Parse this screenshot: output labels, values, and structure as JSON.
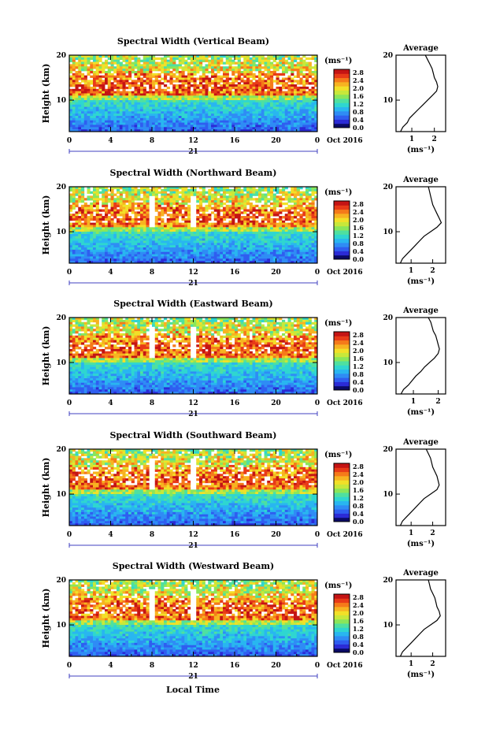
{
  "figure": {
    "xlabel": "Local Time",
    "date_label": "Oct 2016",
    "day_label": "21",
    "unit_label": "(ms⁻¹)",
    "avg_title": "Average",
    "avg_xlabel": "(ms⁻¹)"
  },
  "colorbar": {
    "ticks": [
      "2.8",
      "2.4",
      "2.0",
      "1.6",
      "1.2",
      "0.8",
      "0.4",
      "0.0"
    ],
    "colors": [
      "#0a0a66",
      "#2b2bd6",
      "#2f5ef0",
      "#2f8cf5",
      "#29b6f0",
      "#2fd6d0",
      "#4fe0a0",
      "#8ae65a",
      "#c8e83a",
      "#f2e028",
      "#f7b321",
      "#f57a1a",
      "#e83a18",
      "#c41414"
    ]
  },
  "chart_data": [
    {
      "type": "heatmap",
      "title": "Spectral Width (Vertical Beam)",
      "ylabel": "Height (km)",
      "xlim": [
        0,
        24
      ],
      "ylim": [
        3,
        20
      ],
      "x_ticks": [
        "0",
        "4",
        "8",
        "12",
        "16",
        "20",
        "0"
      ],
      "y_ticks": [
        "20",
        "10"
      ],
      "colorbar_range": [
        0.0,
        2.8
      ],
      "avg": {
        "xlim": [
          0.3,
          2.5
        ],
        "x_ticks": [
          "1",
          "2"
        ],
        "y_ticks": [
          "20",
          "10"
        ],
        "profile": [
          [
            0.5,
            3
          ],
          [
            0.6,
            4
          ],
          [
            0.8,
            5
          ],
          [
            0.9,
            6
          ],
          [
            1.1,
            7
          ],
          [
            1.3,
            8
          ],
          [
            1.5,
            9
          ],
          [
            1.7,
            10
          ],
          [
            1.9,
            11
          ],
          [
            2.1,
            12
          ],
          [
            2.15,
            13
          ],
          [
            2.1,
            14
          ],
          [
            2.0,
            15
          ],
          [
            1.95,
            16
          ],
          [
            1.9,
            17
          ],
          [
            1.8,
            18
          ],
          [
            1.7,
            19
          ],
          [
            1.6,
            20
          ]
        ]
      }
    },
    {
      "type": "heatmap",
      "title": "Spectral Width (Northward Beam)",
      "ylabel": "Height (km)",
      "xlim": [
        0,
        24
      ],
      "ylim": [
        3,
        20
      ],
      "x_ticks": [
        "0",
        "4",
        "8",
        "12",
        "16",
        "20",
        "0"
      ],
      "y_ticks": [
        "20",
        "10"
      ],
      "colorbar_range": [
        0.0,
        2.8
      ],
      "avg": {
        "xlim": [
          0.3,
          2.6
        ],
        "x_ticks": [
          "1",
          "2"
        ],
        "y_ticks": [
          "20",
          "10"
        ],
        "profile": [
          [
            0.5,
            3
          ],
          [
            0.6,
            4
          ],
          [
            0.8,
            5
          ],
          [
            1.0,
            6
          ],
          [
            1.2,
            7
          ],
          [
            1.4,
            8
          ],
          [
            1.6,
            9
          ],
          [
            1.9,
            10
          ],
          [
            2.2,
            11
          ],
          [
            2.4,
            12
          ],
          [
            2.3,
            13
          ],
          [
            2.2,
            14
          ],
          [
            2.1,
            15
          ],
          [
            2.0,
            16
          ],
          [
            1.95,
            17
          ],
          [
            1.9,
            18
          ],
          [
            1.85,
            19
          ],
          [
            1.8,
            20
          ]
        ]
      }
    },
    {
      "type": "heatmap",
      "title": "Spectral Width (Eastward Beam)",
      "ylabel": "Height (km)",
      "xlim": [
        0,
        24
      ],
      "ylim": [
        3,
        20
      ],
      "x_ticks": [
        "0",
        "4",
        "8",
        "12",
        "16",
        "20",
        "0"
      ],
      "y_ticks": [
        "20",
        "10"
      ],
      "colorbar_range": [
        0.0,
        2.8
      ],
      "avg": {
        "xlim": [
          0.3,
          2.3
        ],
        "x_ticks": [
          "1",
          "2"
        ],
        "y_ticks": [
          "20",
          "10"
        ],
        "profile": [
          [
            0.5,
            3
          ],
          [
            0.6,
            4
          ],
          [
            0.8,
            5
          ],
          [
            0.95,
            6
          ],
          [
            1.1,
            7
          ],
          [
            1.3,
            8
          ],
          [
            1.45,
            9
          ],
          [
            1.65,
            10
          ],
          [
            1.85,
            11
          ],
          [
            2.0,
            12
          ],
          [
            2.05,
            13
          ],
          [
            2.0,
            14
          ],
          [
            1.95,
            15
          ],
          [
            1.9,
            16
          ],
          [
            1.8,
            17
          ],
          [
            1.75,
            18
          ],
          [
            1.7,
            19
          ],
          [
            1.6,
            20
          ]
        ]
      }
    },
    {
      "type": "heatmap",
      "title": "Spectral Width (Southward Beam)",
      "ylabel": "Height (km)",
      "xlim": [
        0,
        24
      ],
      "ylim": [
        3,
        20
      ],
      "x_ticks": [
        "0",
        "4",
        "8",
        "12",
        "16",
        "20",
        "0"
      ],
      "y_ticks": [
        "20",
        "10"
      ],
      "colorbar_range": [
        0.0,
        2.8
      ],
      "avg": {
        "xlim": [
          0.3,
          2.6
        ],
        "x_ticks": [
          "1",
          "2"
        ],
        "y_ticks": [
          "20",
          "10"
        ],
        "profile": [
          [
            0.5,
            3
          ],
          [
            0.6,
            4
          ],
          [
            0.8,
            5
          ],
          [
            1.0,
            6
          ],
          [
            1.2,
            7
          ],
          [
            1.4,
            8
          ],
          [
            1.6,
            9
          ],
          [
            1.9,
            10
          ],
          [
            2.2,
            11
          ],
          [
            2.3,
            12
          ],
          [
            2.25,
            13
          ],
          [
            2.2,
            14
          ],
          [
            2.1,
            15
          ],
          [
            2.0,
            16
          ],
          [
            1.95,
            17
          ],
          [
            1.9,
            18
          ],
          [
            1.8,
            19
          ],
          [
            1.7,
            20
          ]
        ]
      }
    },
    {
      "type": "heatmap",
      "title": "Spectral Width (Westward Beam)",
      "ylabel": "Height (km)",
      "xlim": [
        0,
        24
      ],
      "ylim": [
        3,
        20
      ],
      "x_ticks": [
        "0",
        "4",
        "8",
        "12",
        "16",
        "20",
        "0"
      ],
      "y_ticks": [
        "20",
        "10"
      ],
      "colorbar_range": [
        0.0,
        2.8
      ],
      "avg": {
        "xlim": [
          0.3,
          2.6
        ],
        "x_ticks": [
          "1",
          "2"
        ],
        "y_ticks": [
          "20",
          "10"
        ],
        "profile": [
          [
            0.5,
            3
          ],
          [
            0.6,
            4
          ],
          [
            0.8,
            5
          ],
          [
            1.0,
            6
          ],
          [
            1.2,
            7
          ],
          [
            1.4,
            8
          ],
          [
            1.6,
            9
          ],
          [
            1.9,
            10
          ],
          [
            2.2,
            11
          ],
          [
            2.35,
            12
          ],
          [
            2.3,
            13
          ],
          [
            2.2,
            14
          ],
          [
            2.15,
            15
          ],
          [
            2.1,
            16
          ],
          [
            2.0,
            17
          ],
          [
            1.9,
            18
          ],
          [
            1.85,
            19
          ],
          [
            1.8,
            20
          ]
        ]
      }
    }
  ]
}
